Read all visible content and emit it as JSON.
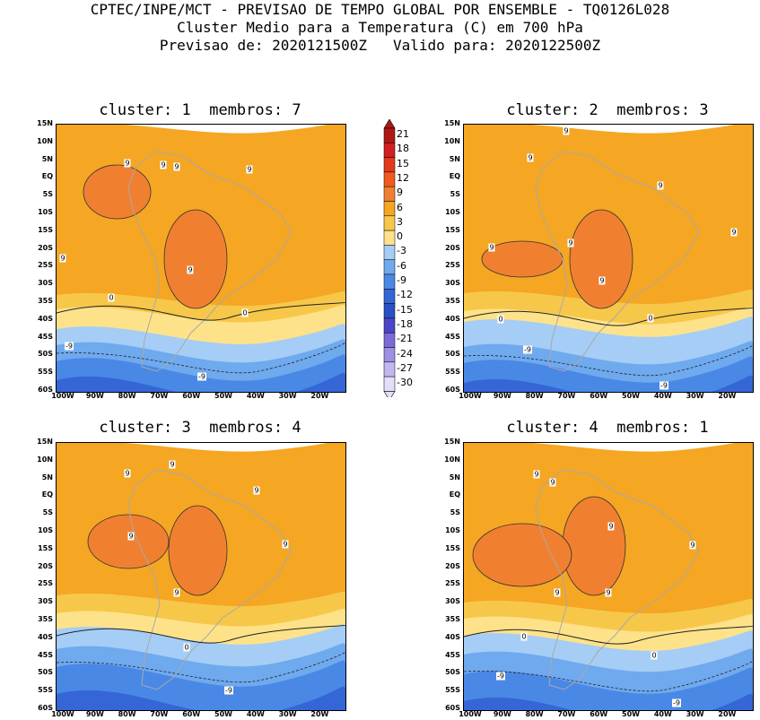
{
  "header": {
    "line1": "CPTEC/INPE/MCT - PREVISAO DE TEMPO GLOBAL POR ENSEMBLE - TQ0126L028",
    "line2": "Cluster Medio para a Temperatura (C) em 700 hPa",
    "line3": "Previsao de: 2020121500Z   Valido para: 2020122500Z"
  },
  "panels": [
    {
      "title": "cluster: 1  membros: 7",
      "labels": {
        "warm": "9",
        "zero": "0",
        "cold": "-9"
      }
    },
    {
      "title": "cluster: 2  membros: 3",
      "labels": {
        "warm": "9",
        "zero": "0",
        "cold": "-9"
      }
    },
    {
      "title": "cluster: 3  membros: 4",
      "labels": {
        "warm": "9",
        "zero": "0",
        "cold": "-9"
      }
    },
    {
      "title": "cluster: 4  membros: 1",
      "labels": {
        "warm": "9",
        "zero": "0",
        "cold": "-9"
      }
    }
  ],
  "axes": {
    "lat": [
      "15N",
      "10N",
      "5N",
      "EQ",
      "5S",
      "10S",
      "15S",
      "20S",
      "25S",
      "30S",
      "35S",
      "40S",
      "45S",
      "50S",
      "55S",
      "60S"
    ],
    "lon": [
      "100W",
      "90W",
      "80W",
      "70W",
      "60W",
      "50W",
      "40W",
      "30W",
      "20W"
    ]
  },
  "colorbar": {
    "levels": [
      "21",
      "18",
      "15",
      "12",
      "9",
      "6",
      "3",
      "0",
      "-3",
      "-6",
      "-9",
      "-12",
      "-15",
      "-18",
      "-21",
      "-24",
      "-27",
      "-30"
    ],
    "colors": {
      "c21": "#b01818",
      "c18": "#d02020",
      "c15": "#e23a1a",
      "c12": "#ef5a1e",
      "c9": "#f08030",
      "c6": "#f5a623",
      "c3": "#f7c74a",
      "c0": "#fde28a",
      "cm3": "#a5cdf5",
      "cm6": "#6fa9ee",
      "cm9": "#4a88e6",
      "cm12": "#3566d6",
      "cm15": "#2b4fc4",
      "cm18": "#4d45c7",
      "cm21": "#7c6ad9",
      "cm24": "#9e8fe3",
      "cm27": "#c2b7ee",
      "cm30": "#e4def8"
    }
  }
}
